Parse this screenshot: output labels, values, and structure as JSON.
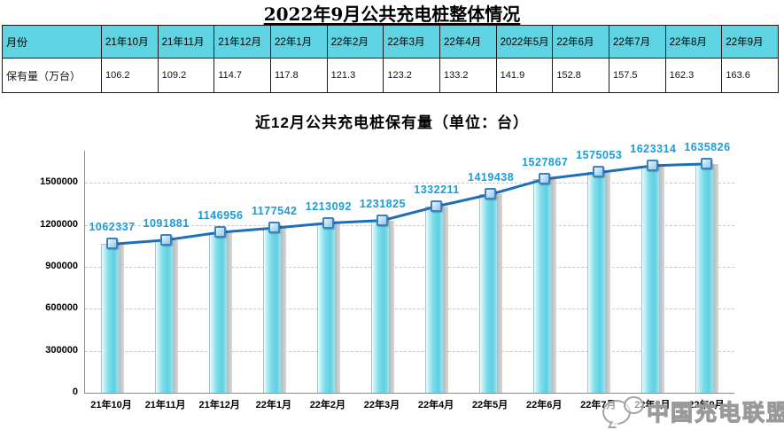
{
  "page": {
    "title": "2022年9月公共充电桩整体情况"
  },
  "table": {
    "row_header": "月份",
    "row2_header": "保有量（万台）",
    "months": [
      "21年10月",
      "21年11月",
      "21年12月",
      "22年1月",
      "22年2月",
      "22年3月",
      "22年4月",
      "2022年5月",
      "22年6月",
      "22年7月",
      "22年8月",
      "22年9月"
    ],
    "values": [
      "106.2",
      "109.2",
      "114.7",
      "117.8",
      "121.3",
      "123.2",
      "133.2",
      "141.9",
      "152.8",
      "157.5",
      "162.3",
      "163.6"
    ]
  },
  "chart_data": {
    "type": "bar",
    "line_overlay": true,
    "title": "近12月公共充电桩保有量（单位：台）",
    "categories": [
      "21年10月",
      "21年11月",
      "21年12月",
      "22年1月",
      "22年2月",
      "22年3月",
      "22年4月",
      "22年5月",
      "22年6月",
      "22年7月",
      "22年8月",
      "22年9月"
    ],
    "values": [
      1062337,
      1091881,
      1146956,
      1177542,
      1213092,
      1231825,
      1332211,
      1419438,
      1527867,
      1575053,
      1623314,
      1635826
    ],
    "xlabel": "",
    "ylabel": "",
    "yticks": [
      0,
      300000,
      600000,
      900000,
      1200000,
      1500000
    ],
    "ylim": [
      0,
      1730000
    ],
    "grid": true,
    "legend_position": "none",
    "colors": {
      "bar": "#7bdce9",
      "bar_shadow": "#bdbdbd",
      "line": "#1c6fb8",
      "marker_fill": "#bfe0f5",
      "marker_border": "#3f80bf",
      "data_label": "#1b9cd9",
      "table_header_bg": "#5fd3e2",
      "grid_line": "#c9c9c9"
    }
  },
  "watermark": {
    "text": "中国充电联盟"
  }
}
